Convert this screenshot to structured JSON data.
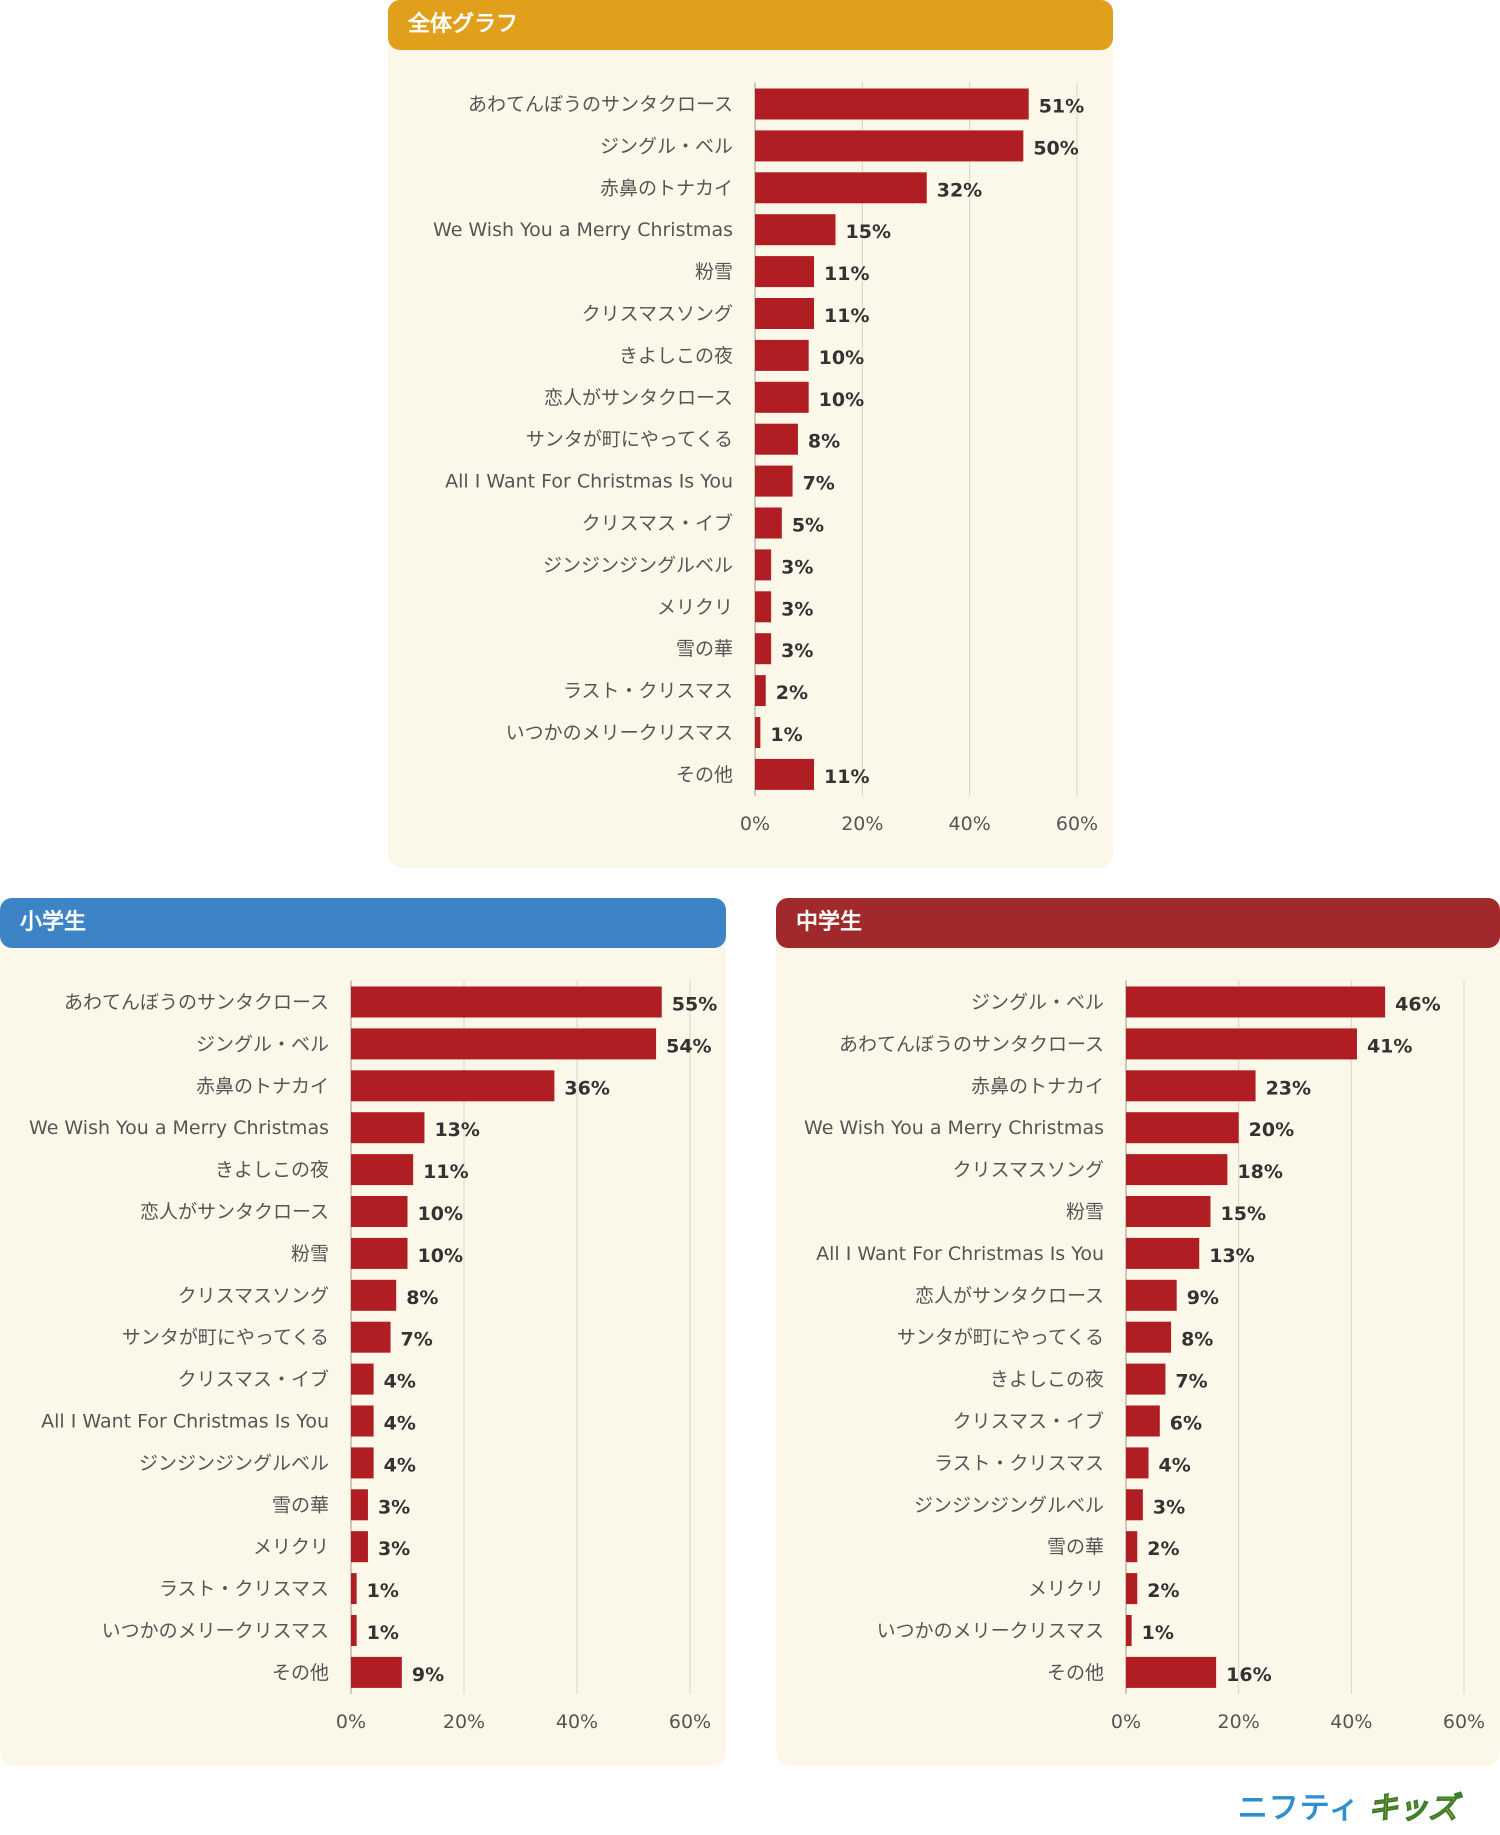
{
  "colors": {
    "bar": "#b01e23",
    "grid": "#d9d5c6",
    "label": "#555555",
    "value": "#333333",
    "header_all": "#e0a01b",
    "header_elem": "#3d84c6",
    "header_middle": "#a0292b",
    "panel_bg": "#fbf8ea"
  },
  "logo": {
    "part1": "ニフティ",
    "part2": "キッズ"
  },
  "chart_data": [
    {
      "id": "all",
      "title": "全体グラフ",
      "type": "bar",
      "orientation": "horizontal",
      "xlim": [
        0,
        60
      ],
      "ticks": [
        "0%",
        "20%",
        "40%",
        "60%"
      ],
      "unit": "%",
      "categories": [
        "あわてんぼうのサンタクロース",
        "ジングル・ベル",
        "赤鼻のトナカイ",
        "We Wish You a Merry Christmas",
        "粉雪",
        "クリスマスソング",
        "きよしこの夜",
        "恋人がサンタクロース",
        "サンタが町にやってくる",
        "All I Want For Christmas Is You",
        "クリスマス・イブ",
        "ジンジンジングルベル",
        "メリクリ",
        "雪の華",
        "ラスト・クリスマス",
        "いつかのメリークリスマス",
        "その他"
      ],
      "values": [
        51,
        50,
        32,
        15,
        11,
        11,
        10,
        10,
        8,
        7,
        5,
        3,
        3,
        3,
        2,
        1,
        11
      ],
      "labels": [
        "51%",
        "50%",
        "32%",
        "15%",
        "11%",
        "11%",
        "10%",
        "10%",
        "8%",
        "7%",
        "5%",
        "3%",
        "3%",
        "3%",
        "2%",
        "1%",
        "11%"
      ]
    },
    {
      "id": "elementary",
      "title": "小学生",
      "type": "bar",
      "orientation": "horizontal",
      "xlim": [
        0,
        60
      ],
      "ticks": [
        "0%",
        "20%",
        "40%",
        "60%"
      ],
      "unit": "%",
      "categories": [
        "あわてんぼうのサンタクロース",
        "ジングル・ベル",
        "赤鼻のトナカイ",
        "We Wish You a Merry Christmas",
        "きよしこの夜",
        "恋人がサンタクロース",
        "粉雪",
        "クリスマスソング",
        "サンタが町にやってくる",
        "クリスマス・イブ",
        "All I Want For Christmas Is You",
        "ジンジンジングルベル",
        "雪の華",
        "メリクリ",
        "ラスト・クリスマス",
        "いつかのメリークリスマス",
        "その他"
      ],
      "values": [
        55,
        54,
        36,
        13,
        11,
        10,
        10,
        8,
        7,
        4,
        4,
        4,
        3,
        3,
        1,
        1,
        9
      ],
      "labels": [
        "55%",
        "54%",
        "36%",
        "13%",
        "11%",
        "10%",
        "10%",
        "8%",
        "7%",
        "4%",
        "4%",
        "4%",
        "3%",
        "3%",
        "1%",
        "1%",
        "9%"
      ]
    },
    {
      "id": "middle",
      "title": "中学生",
      "type": "bar",
      "orientation": "horizontal",
      "xlim": [
        0,
        60
      ],
      "ticks": [
        "0%",
        "20%",
        "40%",
        "60%"
      ],
      "unit": "%",
      "categories": [
        "ジングル・ベル",
        "あわてんぼうのサンタクロース",
        "赤鼻のトナカイ",
        "We Wish You a Merry Christmas",
        "クリスマスソング",
        "粉雪",
        "All I Want For Christmas Is You",
        "恋人がサンタクロース",
        "サンタが町にやってくる",
        "きよしこの夜",
        "クリスマス・イブ",
        "ラスト・クリスマス",
        "ジンジンジングルベル",
        "雪の華",
        "メリクリ",
        "いつかのメリークリスマス",
        "その他"
      ],
      "values": [
        46,
        41,
        23,
        20,
        18,
        15,
        13,
        9,
        8,
        7,
        6,
        4,
        3,
        2,
        2,
        1,
        16
      ],
      "labels": [
        "46%",
        "41%",
        "23%",
        "20%",
        "18%",
        "15%",
        "13%",
        "9%",
        "8%",
        "7%",
        "6%",
        "4%",
        "3%",
        "2%",
        "2%",
        "1%",
        "16%"
      ]
    }
  ]
}
